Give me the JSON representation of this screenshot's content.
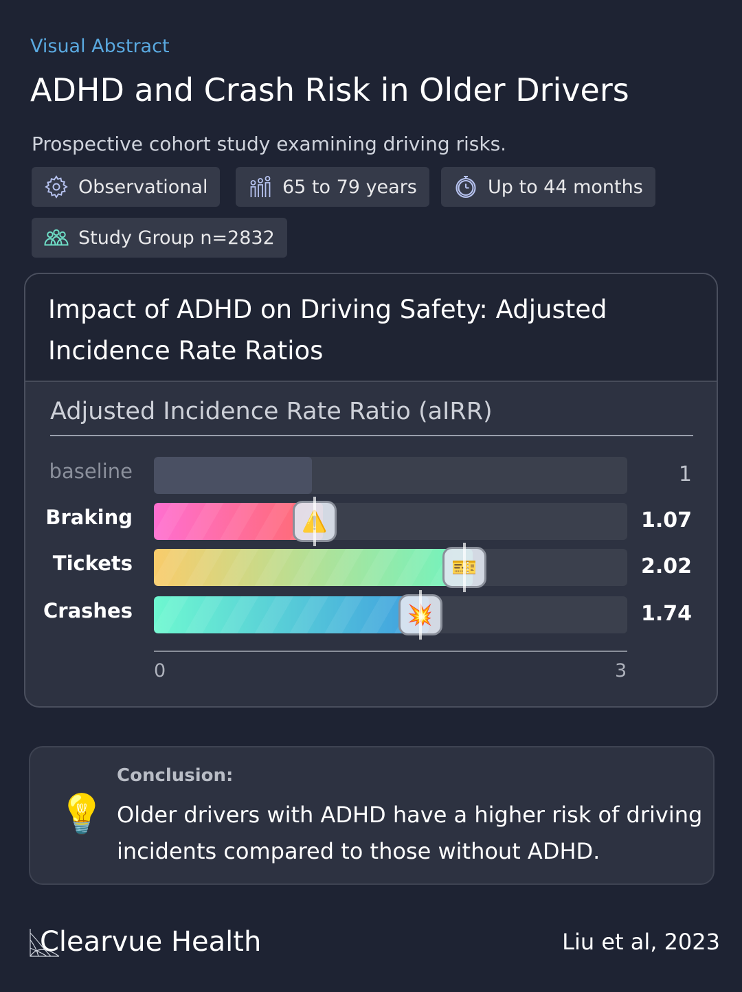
{
  "header": {
    "eyebrow": "Visual Abstract",
    "title": "ADHD and Crash Risk in Older Drivers",
    "subtitle": "Prospective cohort study examining driving risks."
  },
  "pills": [
    {
      "icon": "gear-icon",
      "label": "Observational"
    },
    {
      "icon": "people-icon",
      "label": "65 to 79 years"
    },
    {
      "icon": "stopwatch-icon",
      "label": "Up to 44 months"
    },
    {
      "icon": "group-icon",
      "label": "Study Group n=2832"
    }
  ],
  "card": {
    "title": "Impact of ADHD on Driving Safety: Adjusted Incidence Rate Ratios"
  },
  "chart_data": {
    "type": "bar",
    "orientation": "horizontal",
    "title": "Adjusted Incidence Rate Ratio (aIRR)",
    "xlim": [
      0,
      3
    ],
    "ticks": [
      "0",
      "3"
    ],
    "categories": [
      "baseline",
      "Braking",
      "Tickets",
      "Crashes"
    ],
    "values": [
      1,
      1.07,
      2.02,
      1.74
    ],
    "labels": [
      "1",
      "1.07",
      "2.02",
      "1.74"
    ],
    "icons": [
      "",
      "warning-icon",
      "ticket-icon",
      "collision-icon"
    ],
    "colors": [
      [
        "#4a5063",
        "#4a5063"
      ],
      [
        "#ff6fd0",
        "#ff6b6b"
      ],
      [
        "#f9cc6b",
        "#6cf5c2"
      ],
      [
        "#6ef8d0",
        "#3f9de0"
      ]
    ]
  },
  "conclusion": {
    "label": "Conclusion:",
    "text": "Older drivers with ADHD have a higher risk of driving incidents compared to those without ADHD."
  },
  "footer": {
    "brand": "Clearvue Health",
    "citation": "Liu et al, 2023"
  }
}
